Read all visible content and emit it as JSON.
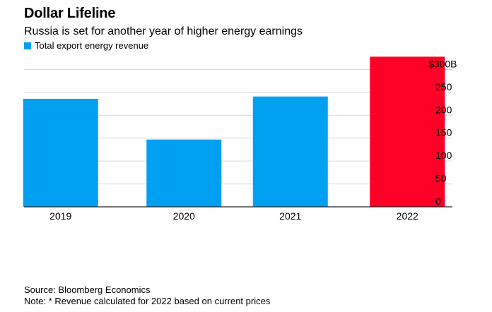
{
  "header": {
    "title": "Dollar Lifeline",
    "subtitle": "Russia is set for another year of higher energy earnings"
  },
  "legend": {
    "label": "Total export energy revenue",
    "color": "#00a0f0"
  },
  "footer": {
    "source": "Source: Bloomberg Economics",
    "note": "Note: * Revenue calculated for 2022 based on current prices"
  },
  "chart_data": {
    "type": "bar",
    "categories": [
      "2019",
      "2020",
      "2021",
      "2022"
    ],
    "series": [
      {
        "name": "Total export energy revenue",
        "values": [
          236,
          147,
          241,
          328
        ]
      }
    ],
    "bar_colors": [
      "#00a0f0",
      "#00a0f0",
      "#00a0f0",
      "#ff0026"
    ],
    "y_ticks": [
      0,
      50,
      100,
      150,
      200,
      250,
      300
    ],
    "y_tick_labels": [
      "0",
      "50",
      "100",
      "150",
      "200",
      "250",
      "$300B"
    ],
    "ylim": [
      0,
      330
    ],
    "grid": true,
    "y_axis_position": "right",
    "legend_position": "top-left"
  }
}
